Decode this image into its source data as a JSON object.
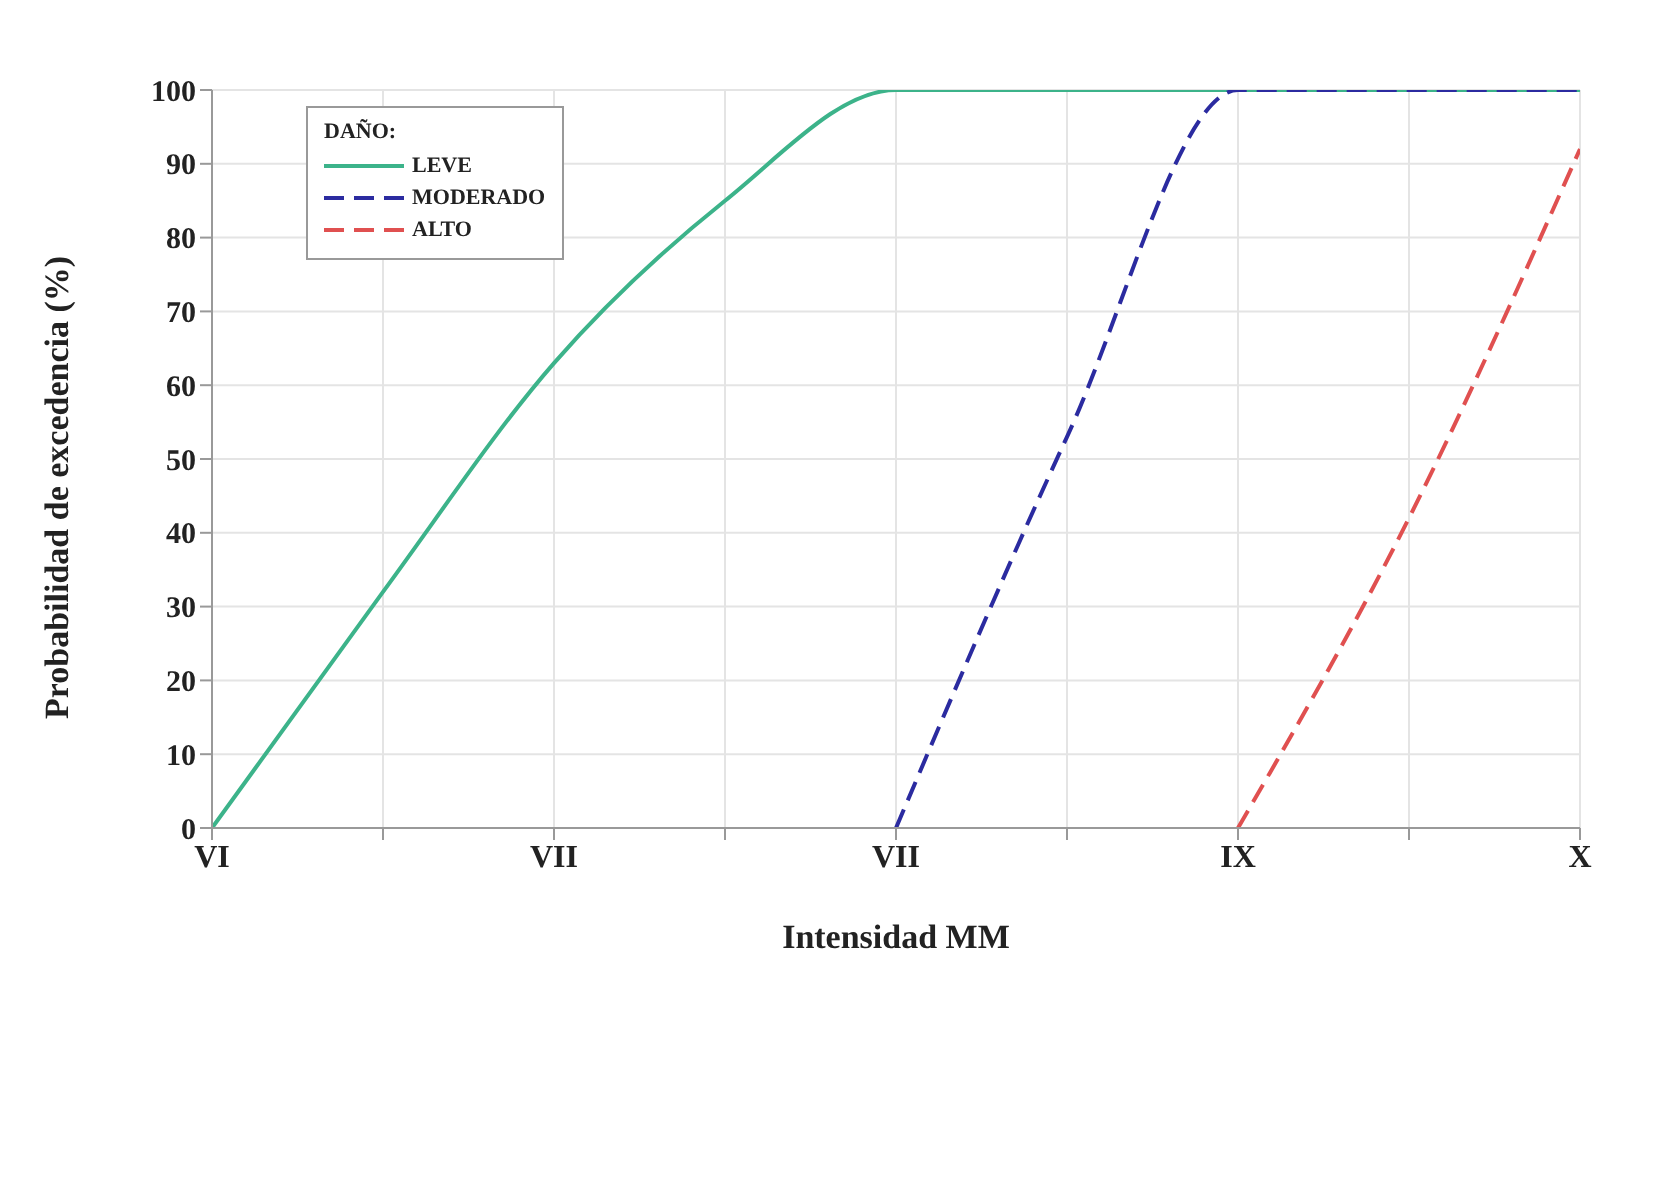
{
  "chart_data": {
    "type": "line",
    "xlabel": "Intensidad MM",
    "ylabel": "Probabilidad de excedencia (%)",
    "legend_title": "DAÑO:",
    "legend": "top left",
    "grid": true,
    "marker": "none",
    "categories": [
      "VI",
      null,
      "VII",
      null,
      "VII",
      null,
      "IX",
      null,
      "X"
    ],
    "ylim": [
      0,
      100
    ],
    "yticks": [
      0,
      10,
      20,
      30,
      40,
      50,
      60,
      70,
      80,
      90,
      100
    ],
    "series": [
      {
        "name": "LEVE",
        "color": "#3cb38a",
        "line_style": "solid",
        "values": [
          0,
          32,
          63,
          85,
          100,
          100,
          100,
          100,
          100
        ]
      },
      {
        "name": "MODERADO",
        "color": "#2b2ba0",
        "line_style": "dashed",
        "values": [
          null,
          null,
          null,
          null,
          0,
          53,
          100,
          100,
          100
        ]
      },
      {
        "name": "ALTO",
        "color": "#e05050",
        "line_style": "dashed",
        "values": [
          null,
          null,
          null,
          null,
          null,
          null,
          0,
          42,
          92
        ]
      }
    ]
  }
}
